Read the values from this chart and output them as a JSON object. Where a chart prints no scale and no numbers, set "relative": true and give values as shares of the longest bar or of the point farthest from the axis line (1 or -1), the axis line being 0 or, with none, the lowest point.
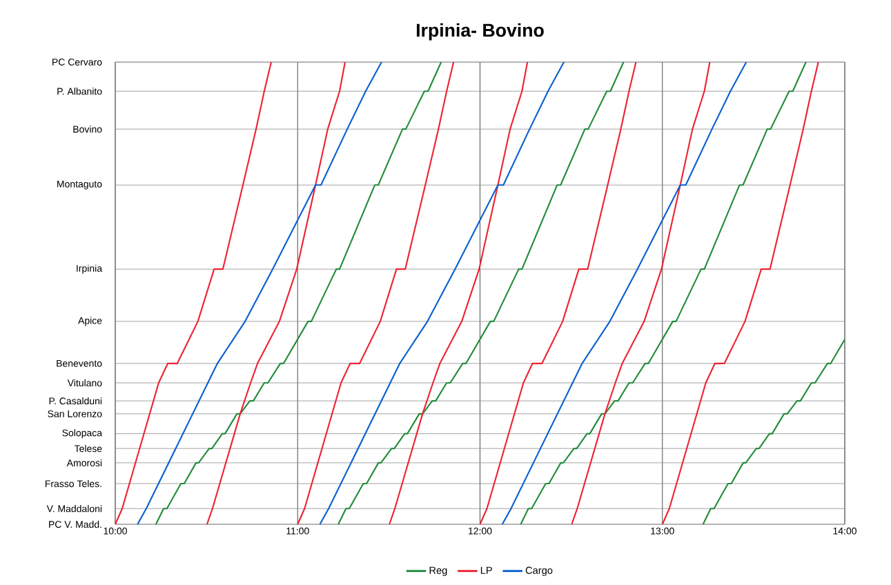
{
  "chart_data": {
    "type": "line",
    "title": "Irpinia- Bovino",
    "relative": true,
    "xlim": [
      10,
      14
    ],
    "xticks": [
      {
        "value": 10,
        "label": "10:00"
      },
      {
        "value": 11,
        "label": "11:00"
      },
      {
        "value": 12,
        "label": "12:00"
      },
      {
        "value": 13,
        "label": "13:00"
      },
      {
        "value": 14,
        "label": "14:00"
      }
    ],
    "ref_lines": [
      {
        "axis": "y",
        "value": 0,
        "label": "PC V. Madd."
      },
      {
        "axis": "y",
        "value": 0.034,
        "label": "V. Maddaloni"
      },
      {
        "axis": "y",
        "value": 0.088,
        "label": "Frasso Teles."
      },
      {
        "axis": "y",
        "value": 0.133,
        "label": "Amorosi"
      },
      {
        "axis": "y",
        "value": 0.164,
        "label": "Telese"
      },
      {
        "axis": "y",
        "value": 0.196,
        "label": "Solopaca"
      },
      {
        "axis": "y",
        "value": 0.239,
        "label": "San Lorenzo"
      },
      {
        "axis": "y",
        "value": 0.267,
        "label": "P. Casalduni"
      },
      {
        "axis": "y",
        "value": 0.306,
        "label": "Vitulano"
      },
      {
        "axis": "y",
        "value": 0.348,
        "label": "Benevento"
      },
      {
        "axis": "y",
        "value": 0.439,
        "label": "Apice"
      },
      {
        "axis": "y",
        "value": 0.552,
        "label": "Irpinia"
      },
      {
        "axis": "y",
        "value": 0.734,
        "label": "Montaguto"
      },
      {
        "axis": "y",
        "value": 0.855,
        "label": "Bovino"
      },
      {
        "axis": "y",
        "value": 0.937,
        "label": "P. Albanito"
      },
      {
        "axis": "y",
        "value": 1,
        "label": "PC Cervaro"
      }
    ],
    "grid": "x",
    "legend": "bottom",
    "marker": "none",
    "line_style": "solid",
    "series": [
      {
        "name": "Reg",
        "color": "#228b3b",
        "x": [
          10.223,
          10.265,
          10.283,
          10.36,
          10.378,
          10.443,
          10.457,
          10.515,
          10.53,
          10.587,
          10.602,
          10.667,
          10.685,
          10.738,
          10.757,
          10.817,
          10.837,
          10.905,
          10.923,
          11.057,
          11.075,
          11.212,
          11.23,
          11.423,
          11.442,
          11.575,
          11.593,
          11.695,
          11.715,
          11.787,
          null,
          11.223,
          11.265,
          11.283,
          11.36,
          11.378,
          11.443,
          11.457,
          11.515,
          11.53,
          11.587,
          11.602,
          11.667,
          11.685,
          11.738,
          11.757,
          11.817,
          11.837,
          11.905,
          11.923,
          12.057,
          12.075,
          12.212,
          12.23,
          12.423,
          12.442,
          12.575,
          12.593,
          12.695,
          12.715,
          12.787,
          null,
          12.223,
          12.265,
          12.283,
          12.36,
          12.378,
          12.443,
          12.457,
          12.515,
          12.53,
          12.587,
          12.602,
          12.667,
          12.685,
          12.738,
          12.757,
          12.817,
          12.837,
          12.905,
          12.923,
          13.057,
          13.075,
          13.212,
          13.23,
          13.423,
          13.442,
          13.575,
          13.593,
          13.695,
          13.715,
          13.787,
          null,
          13.223,
          13.265,
          13.283,
          13.36,
          13.378,
          13.443,
          13.457,
          13.515,
          13.53,
          13.587,
          13.602,
          13.667,
          13.685,
          13.738,
          13.757,
          13.817,
          13.837,
          13.905,
          13.923,
          14
        ],
        "values": [
          0,
          0.034,
          0.034,
          0.088,
          0.088,
          0.133,
          0.133,
          0.164,
          0.164,
          0.196,
          0.196,
          0.239,
          0.239,
          0.267,
          0.267,
          0.306,
          0.306,
          0.348,
          0.348,
          0.439,
          0.439,
          0.552,
          0.552,
          0.734,
          0.734,
          0.855,
          0.855,
          0.937,
          0.937,
          1,
          null,
          0,
          0.034,
          0.034,
          0.088,
          0.088,
          0.133,
          0.133,
          0.164,
          0.164,
          0.196,
          0.196,
          0.239,
          0.239,
          0.267,
          0.267,
          0.306,
          0.306,
          0.348,
          0.348,
          0.439,
          0.439,
          0.552,
          0.552,
          0.734,
          0.734,
          0.855,
          0.855,
          0.937,
          0.937,
          1,
          null,
          0,
          0.034,
          0.034,
          0.088,
          0.088,
          0.133,
          0.133,
          0.164,
          0.164,
          0.196,
          0.196,
          0.239,
          0.239,
          0.267,
          0.267,
          0.306,
          0.306,
          0.348,
          0.348,
          0.439,
          0.439,
          0.552,
          0.552,
          0.734,
          0.734,
          0.855,
          0.855,
          0.937,
          0.937,
          1,
          null,
          0,
          0.034,
          0.034,
          0.088,
          0.088,
          0.133,
          0.133,
          0.164,
          0.164,
          0.196,
          0.196,
          0.239,
          0.239,
          0.267,
          0.267,
          0.306,
          0.306,
          0.348,
          0.348,
          0.4
        ]
      },
      {
        "name": "LP",
        "color": "#ee2233",
        "x": [
          10,
          10.038,
          10.238,
          10.288,
          10.34,
          10.453,
          10.542,
          10.59,
          10.7,
          10.772,
          10.817,
          10.855,
          null,
          10.503,
          10.533,
          10.685,
          10.742,
          10.78,
          10.9,
          10.995,
          11.098,
          11.165,
          11.23,
          11.26,
          null,
          11,
          11.038,
          11.238,
          11.288,
          11.34,
          11.453,
          11.542,
          11.59,
          11.7,
          11.772,
          11.817,
          11.855,
          null,
          11.503,
          11.533,
          11.685,
          11.742,
          11.78,
          11.9,
          11.995,
          12.098,
          12.165,
          12.23,
          12.26,
          null,
          12,
          12.038,
          12.238,
          12.288,
          12.34,
          12.453,
          12.542,
          12.59,
          12.7,
          12.772,
          12.817,
          12.855,
          null,
          12.503,
          12.533,
          12.685,
          12.742,
          12.78,
          12.9,
          12.995,
          13.098,
          13.165,
          13.23,
          13.26,
          null,
          13,
          13.038,
          13.238,
          13.288,
          13.34,
          13.453,
          13.542,
          13.59,
          13.7,
          13.772,
          13.817,
          13.855
        ],
        "values": [
          0,
          0.034,
          0.306,
          0.348,
          0.348,
          0.439,
          0.552,
          0.552,
          0.734,
          0.855,
          0.937,
          1,
          null,
          0,
          0.034,
          0.239,
          0.306,
          0.348,
          0.439,
          0.552,
          0.734,
          0.855,
          0.937,
          1,
          null,
          0,
          0.034,
          0.306,
          0.348,
          0.348,
          0.439,
          0.552,
          0.552,
          0.734,
          0.855,
          0.937,
          1,
          null,
          0,
          0.034,
          0.239,
          0.306,
          0.348,
          0.439,
          0.552,
          0.734,
          0.855,
          0.937,
          1,
          null,
          0,
          0.034,
          0.306,
          0.348,
          0.348,
          0.439,
          0.552,
          0.552,
          0.734,
          0.855,
          0.937,
          1,
          null,
          0,
          0.034,
          0.239,
          0.306,
          0.348,
          0.439,
          0.552,
          0.734,
          0.855,
          0.937,
          1,
          null,
          0,
          0.034,
          0.306,
          0.348,
          0.348,
          0.439,
          0.552,
          0.552,
          0.734,
          0.855,
          0.937,
          1
        ]
      },
      {
        "name": "Cargo",
        "color": "#0a5fd0",
        "x": [
          10.122,
          10.17,
          10.56,
          10.712,
          10.863,
          11.098,
          11.128,
          11.272,
          11.373,
          11.46,
          null,
          11.122,
          11.17,
          11.56,
          11.712,
          11.863,
          12.098,
          12.128,
          12.272,
          12.373,
          12.46,
          null,
          12.122,
          12.17,
          12.56,
          12.712,
          12.863,
          13.098,
          13.128,
          13.272,
          13.373,
          13.46
        ],
        "values": [
          0,
          0.034,
          0.348,
          0.439,
          0.552,
          0.734,
          0.734,
          0.855,
          0.937,
          1,
          null,
          0,
          0.034,
          0.348,
          0.439,
          0.552,
          0.734,
          0.734,
          0.855,
          0.937,
          1,
          null,
          0,
          0.034,
          0.348,
          0.439,
          0.552,
          0.734,
          0.734,
          0.855,
          0.937,
          1
        ]
      }
    ]
  }
}
